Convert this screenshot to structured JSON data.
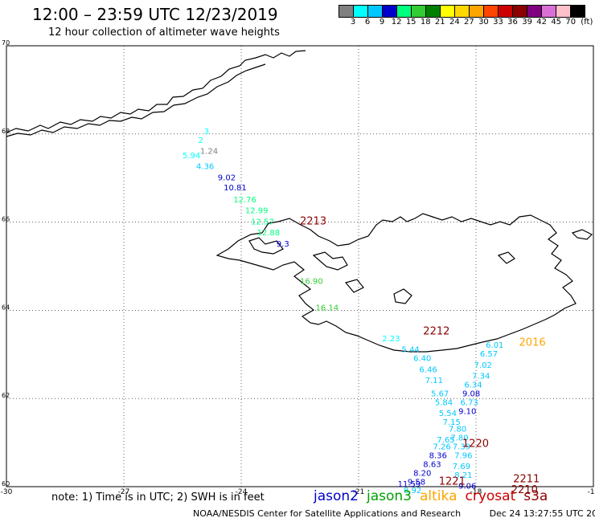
{
  "header": {
    "title": "12:00 – 23:59 UTC 12/23/2019",
    "subtitle": "12 hour collection of altimeter wave heights"
  },
  "colorbar": {
    "unit": "(ft)",
    "bins": [
      {
        "label": "3",
        "color": "#808080"
      },
      {
        "label": "6",
        "color": "#00ffff"
      },
      {
        "label": "9",
        "color": "#00c8ff"
      },
      {
        "label": "12",
        "color": "#0000cd"
      },
      {
        "label": "15",
        "color": "#00ff7f"
      },
      {
        "label": "18",
        "color": "#32cd32"
      },
      {
        "label": "21",
        "color": "#008000"
      },
      {
        "label": "24",
        "color": "#ffff00"
      },
      {
        "label": "27",
        "color": "#ffd700"
      },
      {
        "label": "30",
        "color": "#ffa500"
      },
      {
        "label": "33",
        "color": "#ff4500"
      },
      {
        "label": "36",
        "color": "#cd0000"
      },
      {
        "label": "39",
        "color": "#8b0000"
      },
      {
        "label": "42",
        "color": "#800080"
      },
      {
        "label": "45",
        "color": "#da70d6"
      },
      {
        "label": "70",
        "color": "#ffc0cb"
      },
      {
        "label": "",
        "color": "#000000"
      }
    ]
  },
  "map": {
    "lon_range": [
      -30,
      -15
    ],
    "lat_range": [
      60,
      70
    ],
    "lon_ticks": [
      {
        "value": -30,
        "label": "-30"
      },
      {
        "value": -27,
        "label": "-27"
      },
      {
        "value": -24,
        "label": "-24"
      },
      {
        "value": -21,
        "label": "-21"
      },
      {
        "value": -18,
        "label": "-18"
      },
      {
        "value": -15,
        "label": "-15"
      }
    ],
    "lat_ticks": [
      {
        "value": 70,
        "label": "70"
      },
      {
        "value": 68,
        "label": "68"
      },
      {
        "value": 66,
        "label": "66"
      },
      {
        "value": 64,
        "label": "64"
      },
      {
        "value": 62,
        "label": "62"
      },
      {
        "value": 60,
        "label": "60"
      }
    ],
    "grid": true
  },
  "chart_data": {
    "type": "scatter",
    "x_axis": "longitude",
    "y_axis": "latitude",
    "xlim": [
      -30,
      -15
    ],
    "ylim": [
      60,
      70
    ],
    "unit": "ft",
    "points": [
      {
        "lon": -25.05,
        "lat": 67.55,
        "value": "1.24",
        "color": "#808080"
      },
      {
        "lon": -25.1,
        "lat": 67.8,
        "value": "2",
        "color": "#00ffff"
      },
      {
        "lon": -24.95,
        "lat": 68.0,
        "value": "3",
        "color": "#00ffff"
      },
      {
        "lon": -25.5,
        "lat": 67.45,
        "value": "5.94",
        "color": "#00ffff"
      },
      {
        "lon": -25.15,
        "lat": 67.2,
        "value": "4.36",
        "color": "#00c8ff"
      },
      {
        "lon": -24.6,
        "lat": 66.95,
        "value": "9.02",
        "color": "#0000cd"
      },
      {
        "lon": -24.45,
        "lat": 66.72,
        "value": "10.81",
        "color": "#0000cd"
      },
      {
        "lon": -24.2,
        "lat": 66.45,
        "value": "12.76",
        "color": "#00ff7f"
      },
      {
        "lon": -23.9,
        "lat": 66.2,
        "value": "12.99",
        "color": "#00ff7f"
      },
      {
        "lon": -23.75,
        "lat": 65.95,
        "value": "12.57",
        "color": "#00ff7f"
      },
      {
        "lon": -23.6,
        "lat": 65.7,
        "value": "12.88",
        "color": "#00ff7f"
      },
      {
        "lon": -23.1,
        "lat": 65.45,
        "value": "9.3",
        "color": "#0000cd"
      },
      {
        "lon": -22.5,
        "lat": 64.6,
        "value": "16.90",
        "color": "#32cd32"
      },
      {
        "lon": -22.1,
        "lat": 64.0,
        "value": "16.14",
        "color": "#32cd32"
      },
      {
        "lon": -20.4,
        "lat": 63.3,
        "value": "2.23",
        "color": "#00ffff"
      },
      {
        "lon": -19.9,
        "lat": 63.05,
        "value": "5.44",
        "color": "#00c8ff"
      },
      {
        "lon": -19.6,
        "lat": 62.85,
        "value": "6.40",
        "color": "#00c8ff"
      },
      {
        "lon": -19.45,
        "lat": 62.6,
        "value": "6.46",
        "color": "#00c8ff"
      },
      {
        "lon": -19.3,
        "lat": 62.35,
        "value": "7.11",
        "color": "#00c8ff"
      },
      {
        "lon": -19.15,
        "lat": 62.05,
        "value": "5.67",
        "color": "#00c8ff"
      },
      {
        "lon": -19.05,
        "lat": 61.85,
        "value": "5.84",
        "color": "#00c8ff"
      },
      {
        "lon": -18.95,
        "lat": 61.6,
        "value": "5.54",
        "color": "#00c8ff"
      },
      {
        "lon": -18.85,
        "lat": 61.4,
        "value": "7.15",
        "color": "#00c8ff"
      },
      {
        "lon": -18.7,
        "lat": 61.25,
        "value": "7.80",
        "color": "#00c8ff"
      },
      {
        "lon": -18.65,
        "lat": 61.05,
        "value": "7.80",
        "color": "#00c8ff"
      },
      {
        "lon": -18.6,
        "lat": 60.85,
        "value": "7.39",
        "color": "#00c8ff"
      },
      {
        "lon": -18.55,
        "lat": 60.65,
        "value": "7.96",
        "color": "#00c8ff"
      },
      {
        "lon": -18.6,
        "lat": 60.4,
        "value": "7.69",
        "color": "#00c8ff"
      },
      {
        "lon": -18.55,
        "lat": 60.2,
        "value": "8.21",
        "color": "#00c8ff"
      },
      {
        "lon": -18.45,
        "lat": 59.95,
        "value": "9.06",
        "color": "#0000cd"
      },
      {
        "lon": -18.1,
        "lat": 62.45,
        "value": "7.34",
        "color": "#00c8ff"
      },
      {
        "lon": -18.3,
        "lat": 62.25,
        "value": "6.34",
        "color": "#00c8ff"
      },
      {
        "lon": -18.35,
        "lat": 62.05,
        "value": "9.08",
        "color": "#0000cd"
      },
      {
        "lon": -18.4,
        "lat": 61.85,
        "value": "6.73",
        "color": "#00c8ff"
      },
      {
        "lon": -18.45,
        "lat": 61.65,
        "value": "9.10",
        "color": "#0000cd"
      },
      {
        "lon": -18.05,
        "lat": 62.7,
        "value": "7.02",
        "color": "#00c8ff"
      },
      {
        "lon": -17.9,
        "lat": 62.95,
        "value": "6.57",
        "color": "#00c8ff"
      },
      {
        "lon": -17.75,
        "lat": 63.15,
        "value": "6.01",
        "color": "#00c8ff"
      },
      {
        "lon": -19.0,
        "lat": 61.0,
        "value": "7.65",
        "color": "#00c8ff"
      },
      {
        "lon": -19.1,
        "lat": 60.85,
        "value": "7.26",
        "color": "#00c8ff"
      },
      {
        "lon": -19.2,
        "lat": 60.65,
        "value": "8.36",
        "color": "#0000cd"
      },
      {
        "lon": -19.35,
        "lat": 60.45,
        "value": "8.63",
        "color": "#0000cd"
      },
      {
        "lon": -19.6,
        "lat": 60.25,
        "value": "8.20",
        "color": "#0000cd"
      },
      {
        "lon": -19.75,
        "lat": 60.05,
        "value": "9.58",
        "color": "#0000cd"
      },
      {
        "lon": -19.85,
        "lat": 59.85,
        "value": "8.92",
        "color": "#00c8ff"
      },
      {
        "lon": -20.0,
        "lat": 60.0,
        "value": "11.59",
        "color": "#0000cd"
      }
    ],
    "track_labels": [
      {
        "lon": -22.5,
        "lat": 65.95,
        "label": "2213",
        "color": "#8b0000"
      },
      {
        "lon": -19.35,
        "lat": 63.45,
        "label": "2212",
        "color": "#8b0000"
      },
      {
        "lon": -16.9,
        "lat": 63.2,
        "label": "2016",
        "color": "#ffa500"
      },
      {
        "lon": -18.35,
        "lat": 60.9,
        "label": "1220",
        "color": "#8b0000"
      },
      {
        "lon": -18.95,
        "lat": 60.05,
        "label": "1221",
        "color": "#8b0000"
      },
      {
        "lon": -17.05,
        "lat": 60.1,
        "label": "2211",
        "color": "#8b0000"
      },
      {
        "lon": -17.1,
        "lat": 59.85,
        "label": "2210",
        "color": "#8b0000"
      }
    ]
  },
  "legend": {
    "note": "note:  1) Time is in UTC;  2) SWH is in feet",
    "satellites": [
      {
        "name": "jason2",
        "color": "#0000cd"
      },
      {
        "name": "jason3",
        "color": "#00a000"
      },
      {
        "name": "altika",
        "color": "#ffa500"
      },
      {
        "name": "cryosat",
        "color": "#cd0000"
      },
      {
        "name": "s3a",
        "color": "#8b0000"
      }
    ]
  },
  "footer": {
    "center": "NOAA/NESDIS Center for Satellite Applications and Research",
    "timestamp": "Dec 24 13:27:55 UTC 2019"
  }
}
